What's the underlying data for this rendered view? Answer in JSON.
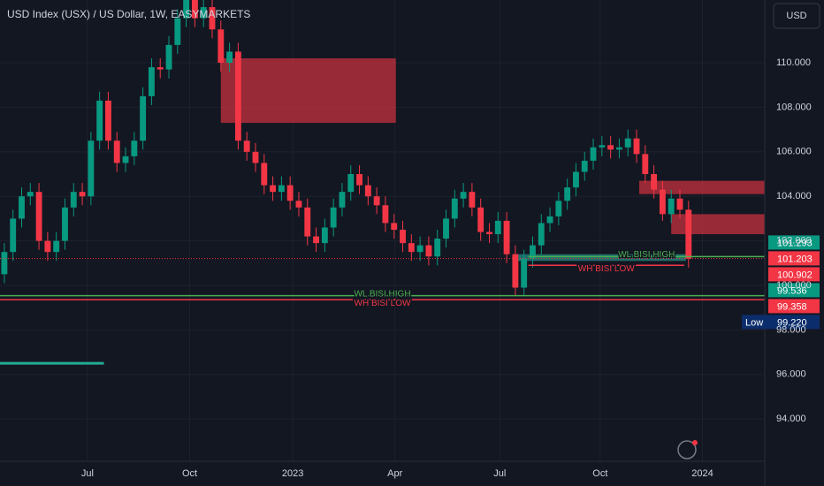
{
  "chart_data": {
    "type": "candlestick",
    "title": "USD Index (USX) / US Dollar, 1W, EASYMARKETS",
    "currency": "USD",
    "open": [
      100.5,
      101.5,
      103.0,
      104.0,
      104.2,
      102.0,
      101.5,
      102.0,
      103.5,
      104.2,
      104.0,
      106.5,
      108.3,
      106.5,
      105.5,
      105.8,
      106.5,
      108.5,
      109.8,
      109.7,
      110.8,
      112.0,
      113.2,
      112.0,
      112.5,
      111.5,
      110.0,
      110.5,
      106.5,
      106.0,
      105.5,
      104.5,
      104.2,
      104.5,
      103.8,
      103.5,
      102.2,
      101.9,
      102.6,
      103.5,
      104.2,
      105.0,
      104.5,
      104.0,
      103.6,
      102.8,
      102.5,
      101.9,
      101.5,
      101.8,
      101.3,
      102.1,
      103.0,
      103.9,
      104.2,
      103.5,
      102.4,
      102.3,
      102.9,
      101.4,
      99.9,
      101.2,
      101.8,
      102.8,
      103.1,
      103.8,
      104.4,
      105.1,
      105.6,
      106.2,
      106.3,
      106.1,
      106.2,
      106.6,
      105.9,
      105.0,
      104.3,
      103.2,
      103.9,
      103.4
    ],
    "high": [
      101.9,
      103.4,
      104.4,
      104.6,
      104.6,
      102.4,
      102.4,
      103.9,
      104.6,
      104.6,
      106.9,
      108.7,
      108.7,
      106.9,
      106.2,
      106.9,
      108.9,
      110.2,
      110.2,
      111.2,
      112.4,
      113.6,
      113.6,
      112.9,
      112.9,
      111.9,
      110.9,
      110.9,
      106.9,
      106.4,
      105.9,
      104.9,
      104.9,
      104.9,
      104.2,
      103.9,
      102.6,
      103.0,
      103.9,
      104.6,
      105.4,
      105.4,
      104.9,
      104.4,
      104.0,
      103.2,
      102.9,
      102.3,
      102.2,
      102.2,
      102.5,
      103.4,
      104.3,
      104.6,
      104.6,
      103.9,
      102.8,
      103.3,
      103.3,
      101.8,
      101.6,
      102.2,
      103.2,
      103.5,
      104.2,
      104.8,
      105.5,
      106.0,
      106.6,
      106.7,
      106.7,
      106.6,
      107.0,
      107.0,
      106.3,
      105.4,
      104.7,
      104.3,
      104.3,
      103.8
    ],
    "low": [
      100.1,
      101.1,
      102.6,
      103.6,
      101.6,
      101.1,
      101.1,
      101.6,
      103.1,
      103.6,
      103.6,
      106.1,
      106.1,
      105.1,
      105.1,
      105.4,
      106.1,
      108.1,
      109.3,
      109.3,
      110.4,
      111.6,
      111.6,
      111.6,
      111.1,
      109.6,
      109.6,
      106.1,
      105.6,
      105.1,
      104.1,
      103.8,
      103.8,
      103.4,
      103.1,
      101.8,
      101.5,
      101.5,
      102.2,
      103.1,
      103.8,
      104.1,
      103.6,
      103.2,
      102.4,
      102.1,
      101.5,
      101.1,
      101.1,
      100.9,
      100.9,
      101.7,
      102.6,
      103.5,
      103.1,
      102.0,
      101.9,
      101.9,
      101.0,
      99.5,
      99.5,
      100.8,
      101.4,
      102.4,
      102.7,
      103.4,
      104.0,
      104.7,
      105.2,
      105.8,
      105.7,
      105.7,
      105.8,
      105.5,
      104.6,
      103.9,
      102.9,
      102.8,
      103.0,
      100.8
    ],
    "close": [
      101.5,
      103.0,
      104.0,
      104.2,
      102.0,
      101.5,
      102.0,
      103.5,
      104.2,
      104.0,
      106.5,
      108.3,
      106.5,
      105.5,
      105.8,
      106.5,
      108.5,
      109.8,
      109.7,
      110.8,
      112.0,
      113.2,
      112.0,
      112.5,
      111.5,
      110.0,
      110.5,
      106.5,
      106.0,
      105.5,
      104.5,
      104.2,
      104.5,
      103.8,
      103.5,
      102.2,
      101.9,
      102.6,
      103.5,
      104.2,
      105.0,
      104.5,
      104.0,
      103.6,
      102.8,
      102.5,
      101.9,
      101.5,
      101.8,
      101.3,
      102.1,
      103.0,
      103.9,
      104.2,
      103.5,
      102.4,
      102.3,
      102.9,
      101.4,
      99.9,
      101.2,
      101.8,
      102.8,
      103.1,
      103.8,
      104.4,
      105.1,
      105.6,
      106.2,
      106.3,
      106.1,
      106.2,
      106.6,
      105.9,
      105.0,
      104.3,
      103.2,
      103.9,
      103.4,
      101.2
    ],
    "up_color": "#089981",
    "down_color": "#f23645",
    "xlim": [
      -0.5,
      87.8
    ],
    "xticks": [
      {
        "value": 9.6,
        "label": "Jul"
      },
      {
        "value": 21.4,
        "label": "Oct"
      },
      {
        "value": 33.3,
        "label": "2023"
      },
      {
        "value": 45.1,
        "label": "Apr"
      },
      {
        "value": 57.2,
        "label": "Jul"
      },
      {
        "value": 68.8,
        "label": "Oct"
      },
      {
        "value": 80.6,
        "label": "2024"
      }
    ],
    "ylim": [
      92.1,
      112.82
    ],
    "yticks": [
      {
        "value": 94,
        "label": "94.000"
      },
      {
        "value": 96,
        "label": "96.000"
      },
      {
        "value": 98,
        "label": "98.000"
      },
      {
        "value": 100,
        "label": "100.000"
      },
      {
        "value": 102,
        "label": "102.000"
      },
      {
        "value": 104,
        "label": "104.000"
      },
      {
        "value": 106,
        "label": "106.000"
      },
      {
        "value": 108,
        "label": "108.000"
      },
      {
        "value": 110,
        "label": "110.000"
      }
    ],
    "zones": [
      {
        "x0": 25.0,
        "x1": 45.2,
        "low": 107.3,
        "high": 110.2,
        "color": "#f23645"
      },
      {
        "x0": 73.3,
        "x1": 87.8,
        "low": 104.1,
        "high": 104.7,
        "color": "#f23645"
      },
      {
        "x0": 77.0,
        "x1": 87.8,
        "low": 102.3,
        "high": 103.2,
        "color": "#f23645"
      },
      {
        "x0": 58.7,
        "x1": 78.7,
        "low": 101.1,
        "high": 101.4,
        "color": "#26a69a"
      }
    ],
    "levels": [
      {
        "label": "WL BISI HIGH",
        "value": 101.293,
        "color": "#4caf50",
        "x0": 60.5,
        "x1": 87.8
      },
      {
        "label": "WH BISI LOW",
        "value": 100.902,
        "color": "#f23645",
        "x0": 60.5,
        "x1": 78.5
      },
      {
        "label": "WL BISI HIGH",
        "value": 99.536,
        "color": "#4caf50",
        "x0": -0.5,
        "x1": 87.8
      },
      {
        "label": "WH BISI LOW",
        "value": 99.358,
        "color": "#f23645",
        "x0": -0.5,
        "x1": 87.8
      },
      {
        "value": 101.203,
        "color": "#f23645",
        "x0": -0.5,
        "x1": 87.8,
        "dotted": true
      },
      {
        "value": 96.5,
        "color": "#22ab94",
        "x0": -0.5,
        "x1": 11.5
      }
    ],
    "price_tags": [
      {
        "value": 101.293,
        "label": "101.293",
        "color": "#089981"
      },
      {
        "value": 101.203,
        "label": "101.203",
        "color": "#f23645"
      },
      {
        "value": 100.902,
        "label": "100.902",
        "color": "#f23645"
      },
      {
        "value": 99.536,
        "label": "99.536",
        "color": "#089981"
      },
      {
        "value": 99.358,
        "label": "99.358",
        "color": "#f23645"
      },
      {
        "name": "Low",
        "value": 99.22,
        "label": "99.220",
        "color": "#0c2d6b"
      }
    ]
  }
}
